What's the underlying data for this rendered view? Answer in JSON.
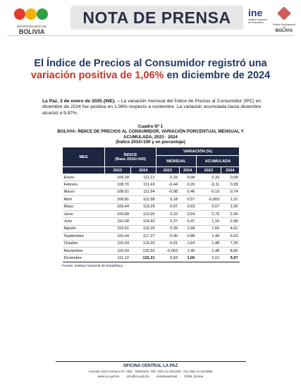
{
  "header": {
    "left_logo": "BICENTENARIO DE",
    "left_logo_country": "BOLIVIA",
    "banner": "NOTA DE PRENSA",
    "ine_logo": "ine",
    "ine_name": "Instituto Nacional de Estadística",
    "state_name": "Estado Plurinacional de",
    "state_country": "BOLIVIA"
  },
  "title": {
    "part1": "El Índice de Precios al Consumidor registró una",
    "highlight": "variación positiva de 1,06%",
    "part2": "en diciembre de 2024"
  },
  "paragraph": {
    "lead": "La Paz, 3 de enero de 2025 (INE). –",
    "body": "La variación mensual del Índice de Precios al Consumidor (IPC) en diciembre de 2024 fue positiva en 1,06% respecto a noviembre. La variación acumulada hasta diciembre alcanzó a 9,97%."
  },
  "table": {
    "caption": "Cuadro Nº 1",
    "heading": "BOLIVIA: ÍNDICE DE PRECIOS AL CONSUMIDOR, VARIACIÓN PORCENTUAL MENSUAL Y ACUMULADA, 2023 - 2024",
    "subheading": "(Índice 2016=100 y en porcentaje)",
    "header": {
      "month": "MES",
      "index": "ÍNDICE",
      "index_base": "(Base 2016=100)",
      "variation": "VARIACIÓN (%)",
      "monthly": "MENSUAL",
      "cumulative": "ACUMULADA",
      "years": [
        "2023",
        "2024",
        "2023",
        "2024",
        "2023",
        "2024"
      ]
    },
    "rows": [
      [
        "Enero",
        "109,18",
        "111,21",
        "0,33",
        "0,08",
        "0,33",
        "0,08"
      ],
      [
        "Febrero",
        "108,70",
        "111,43",
        "-0,44",
        "0,20",
        "-0,11",
        "0,28"
      ],
      [
        "Marzo",
        "108,61",
        "111,94",
        "-0,08",
        "0,46",
        "-0,19",
        "0,74"
      ],
      [
        "Abril",
        "108,81",
        "112,58",
        "0,18",
        "0,57",
        "-0,003",
        "1,31"
      ],
      [
        "Mayo",
        "109,44",
        "113,29",
        "0,57",
        "0,63",
        "0,57",
        "1,95"
      ],
      [
        "Junio",
        "109,68",
        "113,90",
        "0,22",
        "0,54",
        "0,79",
        "2,49"
      ],
      [
        "Julio",
        "110,08",
        "114,43",
        "0,37",
        "0,47",
        "1,16",
        "2,98"
      ],
      [
        "Agosto",
        "110,51",
        "116,25",
        "0,39",
        "1,58",
        "1,55",
        "4,61"
      ],
      [
        "Septiembre",
        "110,44",
        "117,27",
        "-0,06",
        "0,88",
        "1,49",
        "5,53"
      ],
      [
        "Octubre",
        "110,43",
        "119,20",
        "-0,01",
        "1,64",
        "1,48",
        "7,26"
      ],
      [
        "Noviembre",
        "110,43",
        "120,92",
        "-0,003",
        "1,45",
        "1,48",
        "8,82"
      ],
      [
        "Diciembre",
        "111,12",
        "122,21",
        "0,63",
        "1,06",
        "2,12",
        "9,97"
      ]
    ],
    "source": "Fuente: Instituto Nacional de Estadística"
  },
  "footer": {
    "office": "OFICINA CENTRAL LA PAZ",
    "address": "Avenida José Carrasco Nº 1391 - Miraflores, Telf.: (591-2) 2222333 - Fax (591-2) 2222885",
    "web": "www.ine.gob.bo",
    "email": "info@ine.gob.bo",
    "facebook": "ineboliviaoficial",
    "twitter": "@INE_Bolivia"
  }
}
